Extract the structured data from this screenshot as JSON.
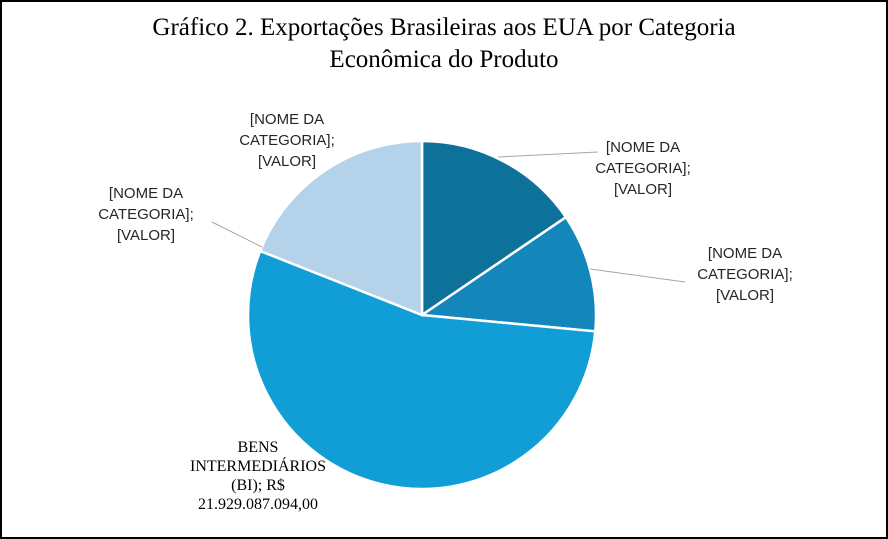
{
  "title": {
    "line1": "Gráfico 2. Exportações Brasileiras aos EUA por Categoria",
    "line2": "Econômica   do Produto"
  },
  "chart_data": {
    "type": "pie",
    "title": "Gráfico 2. Exportações Brasileiras aos EUA por Categoria Econômica do Produto",
    "start_angle_deg": 0,
    "direction": "clockwise",
    "slices": [
      {
        "label_lines": [
          "[NOME DA",
          "CATEGORIA];",
          "[VALOR]"
        ],
        "share": 0.155,
        "color": "#0e7199"
      },
      {
        "label_lines": [
          "[NOME DA",
          "CATEGORIA];",
          "[VALOR]"
        ],
        "share": 0.11,
        "color": "#1387bc"
      },
      {
        "label_lines": [
          "BENS",
          "INTERMEDIÁRIOS",
          "(BI); R$",
          "21.929.087.094,00"
        ],
        "value": 21929087094.0,
        "share": 0.545,
        "color": "#119dd6"
      },
      {
        "label_lines": [
          "[NOME DA",
          "CATEGORIA];",
          "[VALOR]"
        ],
        "share": 0.19,
        "color": "#b4d3ea"
      }
    ]
  }
}
